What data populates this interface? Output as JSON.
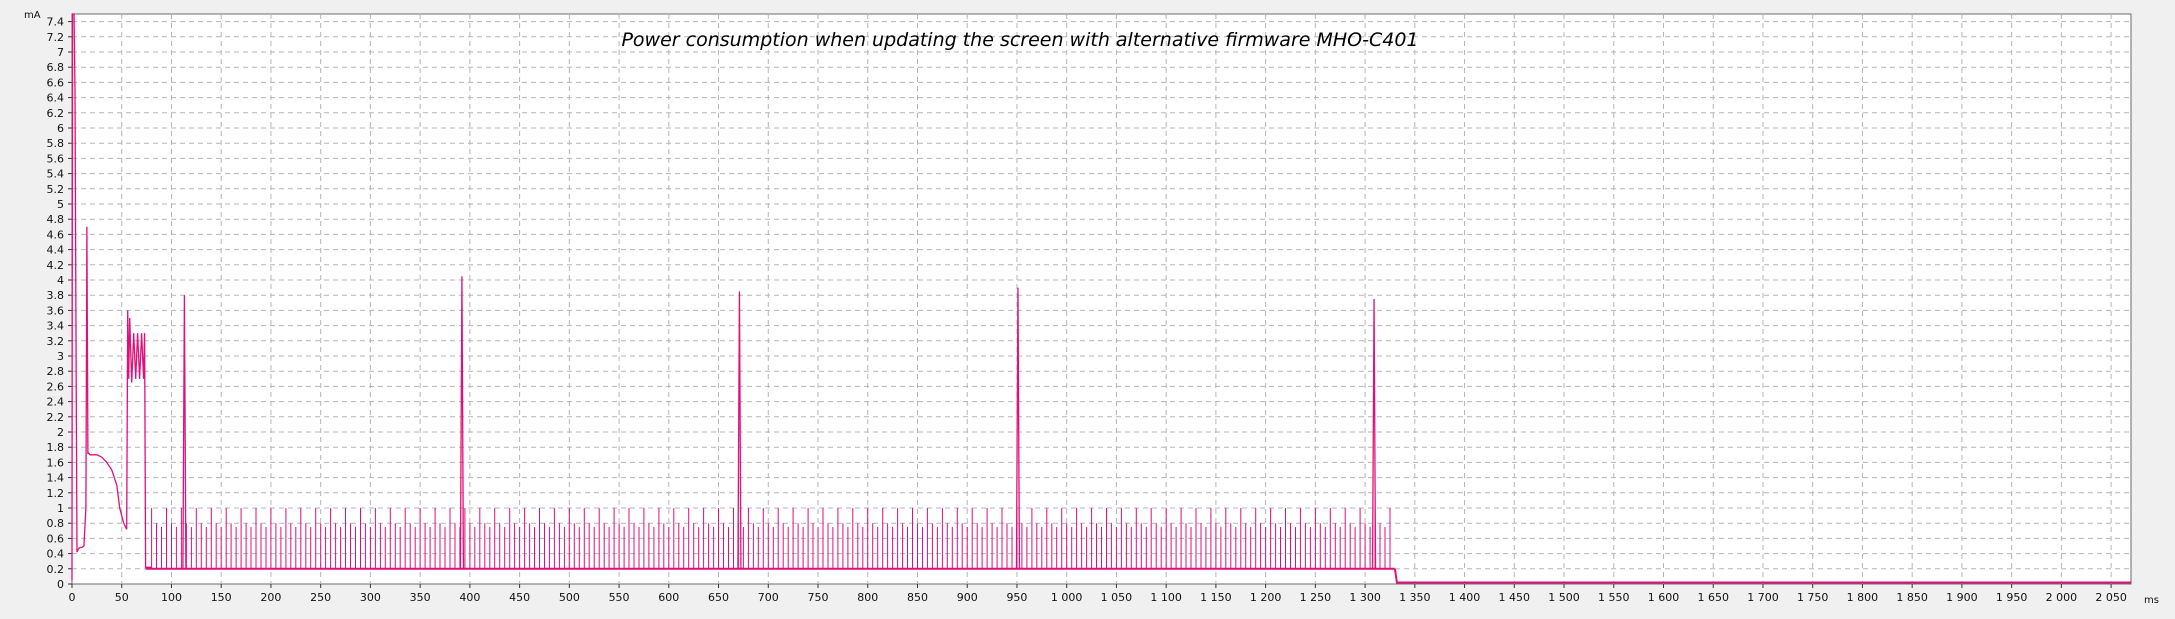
{
  "chart_data": {
    "type": "line",
    "title": "Power consumption when updating the screen with alternative firmware MHO-C401",
    "xunit": "ms",
    "yunit": "mA",
    "xlim": [
      0,
      2070
    ],
    "ylim": [
      0,
      7.5
    ],
    "grid": true,
    "line_color": "#e0107a",
    "x_ticks": [
      0,
      50,
      100,
      150,
      200,
      250,
      300,
      350,
      400,
      450,
      500,
      550,
      600,
      650,
      700,
      750,
      800,
      850,
      900,
      950,
      1000,
      1050,
      1100,
      1150,
      1200,
      1250,
      1300,
      1350,
      1400,
      1450,
      1500,
      1550,
      1600,
      1650,
      1700,
      1750,
      1800,
      1850,
      1900,
      1950,
      2000,
      2050
    ],
    "x_tick_labels": [
      "0",
      "50",
      "100",
      "150",
      "200",
      "250",
      "300",
      "350",
      "400",
      "450",
      "500",
      "550",
      "600",
      "650",
      "700",
      "750",
      "800",
      "850",
      "900",
      "950",
      "1 000",
      "1 050",
      "1 100",
      "1 150",
      "1 200",
      "1 250",
      "1 300",
      "1 350",
      "1 400",
      "1 450",
      "1 500",
      "1 550",
      "1 600",
      "1 650",
      "1 700",
      "1 750",
      "1 800",
      "1 850",
      "1 900",
      "1 950",
      "2 000",
      "2 050"
    ],
    "y_ticks": [
      0,
      0.2,
      0.4,
      0.6,
      0.8,
      1,
      1.2,
      1.4,
      1.6,
      1.8,
      2,
      2.2,
      2.4,
      2.6,
      2.8,
      3,
      3.2,
      3.4,
      3.6,
      3.8,
      4,
      4.2,
      4.4,
      4.6,
      4.8,
      5,
      5.2,
      5.4,
      5.6,
      5.8,
      6,
      6.2,
      6.4,
      6.6,
      6.8,
      7,
      7.2,
      7.4
    ],
    "y_tick_labels": [
      "0",
      "0.2",
      "0.4",
      "0.6",
      "0.8",
      "1",
      "1.2",
      "1.4",
      "1.6",
      "1.8",
      "2",
      "2.2",
      "2.4",
      "2.6",
      "2.8",
      "3",
      "3.2",
      "3.4",
      "3.6",
      "3.8",
      "4",
      "4.2",
      "4.4",
      "4.6",
      "4.8",
      "5",
      "5.2",
      "5.4",
      "5.6",
      "5.8",
      "6",
      "6.2",
      "6.4",
      "6.6",
      "6.8",
      "7",
      "7.2",
      "7.4"
    ],
    "series": [
      {
        "x": [
          0,
          0.5,
          1,
          2,
          3,
          4,
          5,
          6,
          7,
          8,
          10,
          12,
          14,
          15,
          16,
          17,
          18,
          20,
          25,
          30,
          35,
          40,
          45,
          48,
          50,
          52,
          55,
          56,
          57,
          58,
          60,
          62,
          64,
          66,
          68,
          70,
          72,
          73,
          74,
          76,
          80
        ],
        "y": [
          0.05,
          7.5,
          7.5,
          7.5,
          6.5,
          3.2,
          0.42,
          0.45,
          0.47,
          0.48,
          0.48,
          0.5,
          1.0,
          4.7,
          1.72,
          1.72,
          1.7,
          1.7,
          1.7,
          1.67,
          1.6,
          1.5,
          1.3,
          1.0,
          0.9,
          0.8,
          0.72,
          3.6,
          2.7,
          3.5,
          2.65,
          3.3,
          2.7,
          3.3,
          2.7,
          3.3,
          2.7,
          3.3,
          0.22,
          0.22,
          0.22
        ],
        "baseline_segment": {
          "x_start": 74,
          "x_end": 1330,
          "y": 0.2
        },
        "periodic_pulses": {
          "x_start": 80,
          "x_end": 1325,
          "period_ms": 5,
          "heights": [
            1.0,
            0.8,
            0.75
          ]
        },
        "large_spikes": [
          {
            "x": 113,
            "y": 3.8
          },
          {
            "x": 392,
            "y": 4.05
          },
          {
            "x": 671,
            "y": 3.85
          },
          {
            "x": 951,
            "y": 3.9
          },
          {
            "x": 1309,
            "y": 3.75
          }
        ],
        "tail": {
          "x": [
            1330,
            1332,
            2070
          ],
          "y": [
            0.2,
            0.02,
            0.02
          ]
        }
      }
    ]
  }
}
